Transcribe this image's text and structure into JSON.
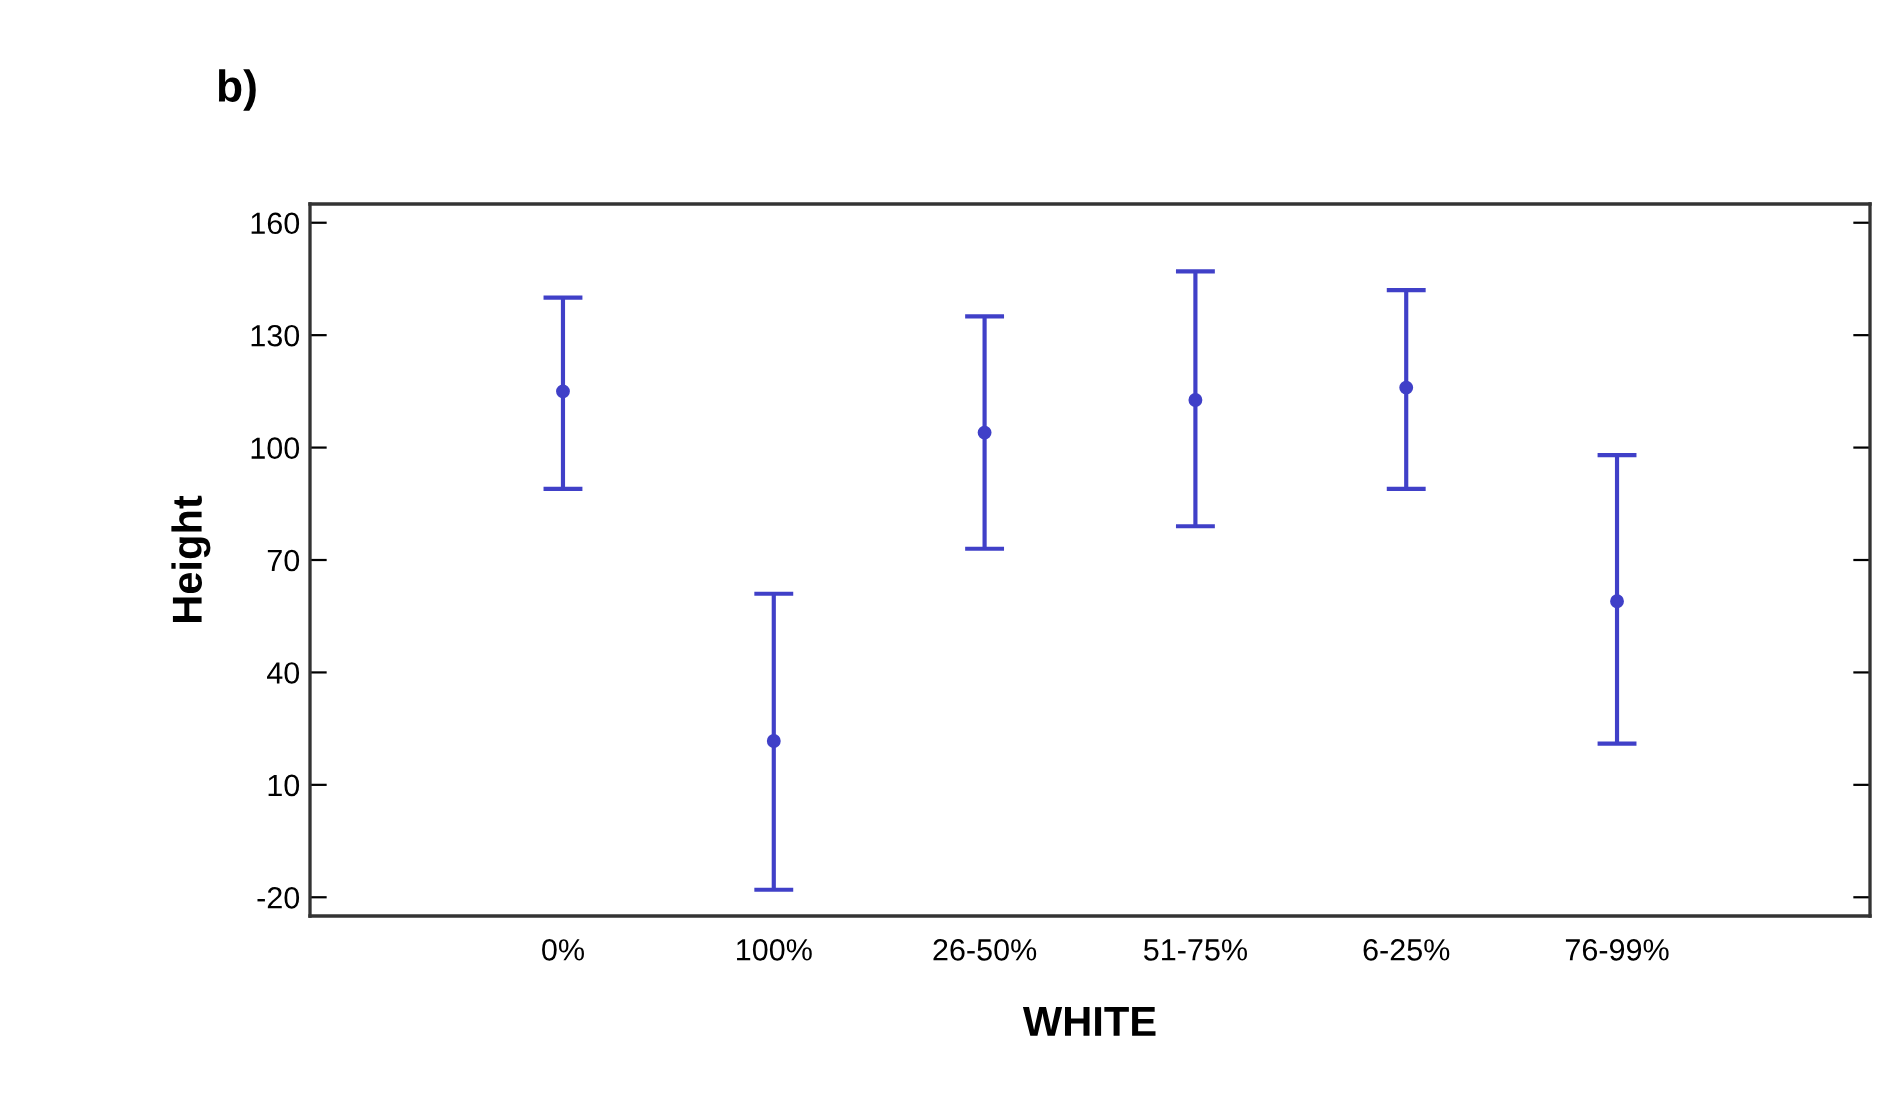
{
  "chart_data": {
    "type": "scatter",
    "xlabel": "WHITE",
    "ylabel": "Height",
    "annotations": [
      "b)"
    ],
    "categories": [
      "0%",
      "100%",
      "26-50%",
      "51-75%",
      "6-25%",
      "76-99%"
    ],
    "values": [
      115,
      21.7,
      104,
      112.7,
      116,
      59
    ],
    "errors": [
      [
        89,
        140
      ],
      [
        -18,
        61
      ],
      [
        73,
        135
      ],
      [
        79,
        147
      ],
      [
        89,
        142
      ],
      [
        21,
        98
      ]
    ],
    "color": "#4040c8",
    "marker": "circle",
    "ylim": [
      -25,
      165
    ],
    "yticks": [
      -20,
      10,
      40,
      70,
      100,
      130,
      160
    ],
    "grid": false,
    "legend": false
  }
}
